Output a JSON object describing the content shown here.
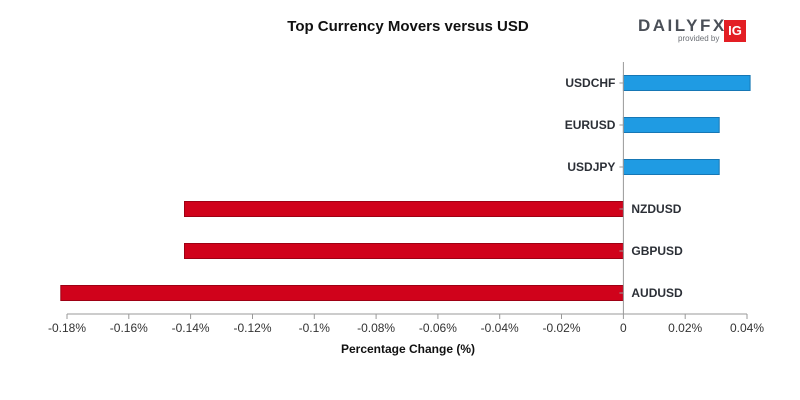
{
  "brand": {
    "word": "DAILYFX",
    "sub": "provided by",
    "badge": "IG"
  },
  "chart_data": {
    "type": "bar",
    "orientation": "horizontal",
    "title": "Top Currency Movers versus USD",
    "xlabel": "Percentage Change (%)",
    "ylabel": "",
    "categories": [
      "USDCHF",
      "EURUSD",
      "USDJPY",
      "NZDUSD",
      "GBPUSD",
      "AUDUSD"
    ],
    "values": [
      0.041,
      0.031,
      0.031,
      -0.142,
      -0.142,
      -0.182
    ],
    "xlim": [
      -0.18,
      0.04
    ],
    "xticks": [
      -0.18,
      -0.16,
      -0.14,
      -0.12,
      -0.1,
      -0.08,
      -0.06,
      -0.04,
      -0.02,
      0,
      0.02,
      0.04
    ],
    "xtick_labels": [
      "-0.18%",
      "-0.16%",
      "-0.14%",
      "-0.12%",
      "-0.1%",
      "-0.08%",
      "-0.06%",
      "-0.04%",
      "-0.02%",
      "0",
      "0.02%",
      "0.04%"
    ],
    "colors": {
      "positive": "#1f9be3",
      "positive_edge": "#1677b5",
      "negative": "#d0021b",
      "negative_edge": "#9e0014"
    },
    "grid": false,
    "legend": "none"
  }
}
